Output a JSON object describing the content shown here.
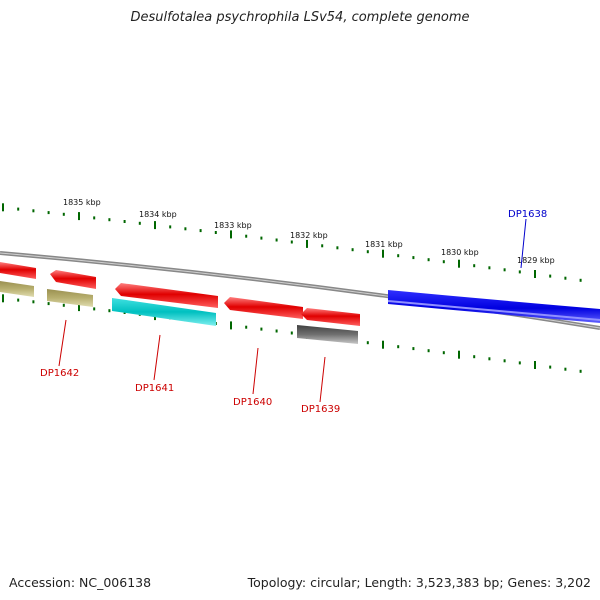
{
  "title": "Desulfotalea psychrophila LSv54, complete genome",
  "accession_text": "Accession: NC_006138",
  "topology_text": "Topology: circular; Length: 3,523,383 bp; Genes: 3,202",
  "scale_labels": [
    "1835 kbp",
    "1834 kbp",
    "1833 kbp",
    "1832 kbp",
    "1831 kbp",
    "1830 kbp",
    "1829 kbp"
  ],
  "gene_labels": [
    {
      "text": "DP1642",
      "color": "#cc0000"
    },
    {
      "text": "DP1641",
      "color": "#cc0000"
    },
    {
      "text": "DP1640",
      "color": "#cc0000"
    },
    {
      "text": "DP1639",
      "color": "#cc0000"
    },
    {
      "text": "DP1638",
      "color": "#0000cc"
    }
  ],
  "colors": {
    "forward_gene": "#e00000",
    "forward_gene_light": "#ff7070",
    "reverse_gene_olive": "#b8b070",
    "reverse_gene_cyan": "#00c0c0",
    "reverse_gene_gray": "#707070",
    "highlight_gene": "#0000ee",
    "backbone": "#808080",
    "tick": "#006600"
  }
}
